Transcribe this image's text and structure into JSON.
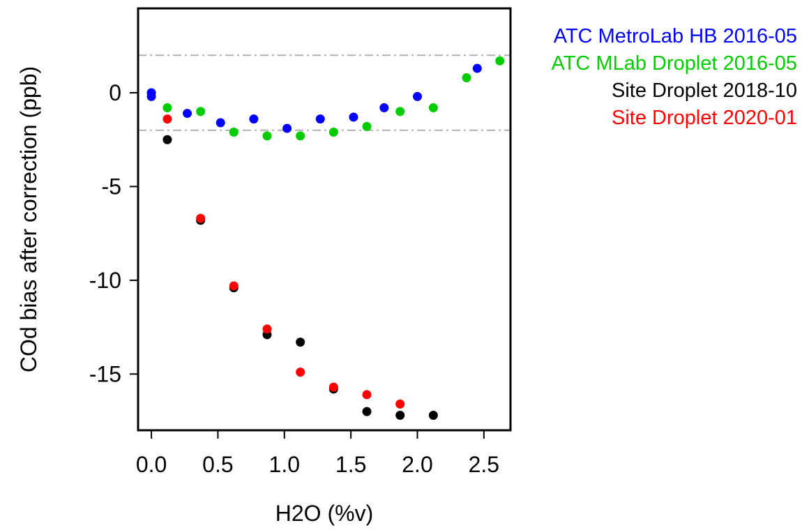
{
  "chart_data": {
    "type": "scatter",
    "xlabel": "H2O (%v)",
    "ylabel": "COd bias after correction (ppb)",
    "xlim": [
      -0.1,
      2.7
    ],
    "ylim": [
      -18,
      4.5
    ],
    "x_ticks": [
      0.0,
      0.5,
      1.0,
      1.5,
      2.0,
      2.5
    ],
    "x_tick_labels": [
      "0.0",
      "0.5",
      "1.0",
      "1.5",
      "2.0",
      "2.5"
    ],
    "y_ticks": [
      0,
      -5,
      -10,
      -15
    ],
    "y_tick_labels": [
      "0",
      "-5",
      "-10",
      "-15"
    ],
    "reference_lines": [
      2,
      -2
    ],
    "reference_line_style": "dash-dot, grey",
    "grid": false,
    "legend_position": "outside right, top",
    "series": [
      {
        "name": "ATC MetroLab HB 2016-05",
        "color": "#0000ff",
        "points": [
          [
            0.0,
            0.0
          ],
          [
            0.0,
            -0.2
          ],
          [
            0.27,
            -1.1
          ],
          [
            0.52,
            -1.6
          ],
          [
            0.77,
            -1.4
          ],
          [
            1.02,
            -1.9
          ],
          [
            1.27,
            -1.4
          ],
          [
            1.52,
            -1.3
          ],
          [
            1.75,
            -0.8
          ],
          [
            2.0,
            -0.2
          ],
          [
            2.45,
            1.3
          ]
        ]
      },
      {
        "name": "ATC MLab Droplet 2016-05",
        "color": "#00cc00",
        "points": [
          [
            0.12,
            -0.8
          ],
          [
            0.37,
            -1.0
          ],
          [
            0.62,
            -2.1
          ],
          [
            0.87,
            -2.3
          ],
          [
            1.12,
            -2.3
          ],
          [
            1.37,
            -2.1
          ],
          [
            1.62,
            -1.8
          ],
          [
            1.87,
            -1.0
          ],
          [
            2.12,
            -0.8
          ],
          [
            2.37,
            0.8
          ],
          [
            2.62,
            1.7
          ]
        ]
      },
      {
        "name": "Site Droplet 2018-10",
        "color": "#000000",
        "points": [
          [
            0.12,
            -2.5
          ],
          [
            0.37,
            -6.8
          ],
          [
            0.62,
            -10.4
          ],
          [
            0.87,
            -12.9
          ],
          [
            1.12,
            -13.3
          ],
          [
            1.37,
            -15.8
          ],
          [
            1.62,
            -17.0
          ],
          [
            1.87,
            -17.2
          ],
          [
            2.12,
            -17.2
          ]
        ]
      },
      {
        "name": "Site Droplet 2020-01",
        "color": "#ff0000",
        "points": [
          [
            0.12,
            -1.4
          ],
          [
            0.37,
            -6.7
          ],
          [
            0.62,
            -10.3
          ],
          [
            0.87,
            -12.6
          ],
          [
            1.12,
            -14.9
          ],
          [
            1.37,
            -15.7
          ],
          [
            1.62,
            -16.1
          ],
          [
            1.87,
            -16.6
          ]
        ]
      }
    ]
  }
}
